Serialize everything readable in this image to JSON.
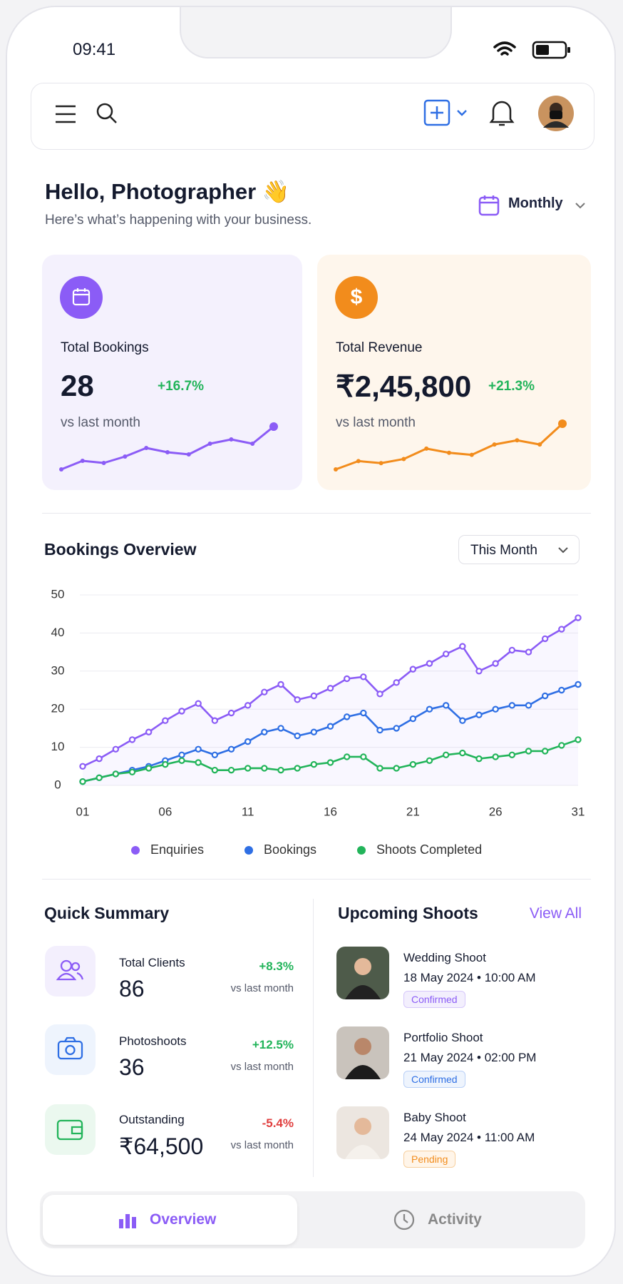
{
  "status": {
    "time": "09:41"
  },
  "greeting": {
    "title": "Hello, Photographer 👋",
    "subtitle": "Here’s what’s happening with your business.",
    "period": "Monthly"
  },
  "stats": [
    {
      "label": "Total Bookings",
      "value": "28",
      "change": "+16.7%",
      "note": "vs last month",
      "color": "#8b5cf6",
      "trend": [
        1,
        3,
        2.5,
        4,
        6,
        5,
        4.5,
        7,
        8,
        7,
        11
      ]
    },
    {
      "label": "Total Revenue",
      "value": "₹2,45,800",
      "change": "+21.3%",
      "note": "vs last month",
      "color": "#f28c1c",
      "trend": [
        1,
        3,
        2.5,
        3.5,
        6,
        5,
        4.5,
        7,
        8,
        7,
        12
      ]
    }
  ],
  "overview_filter": "This Month",
  "chart_data": {
    "type": "line",
    "title": "Bookings Overview",
    "x": [
      1,
      2,
      3,
      4,
      5,
      6,
      7,
      8,
      9,
      10,
      11,
      12,
      13,
      14,
      15,
      16,
      17,
      18,
      19,
      20,
      21,
      22,
      23,
      24,
      25,
      26,
      27,
      28,
      29,
      30,
      31
    ],
    "xlim": [
      1,
      31
    ],
    "xticks": [
      {
        "value": 1,
        "label": "01"
      },
      {
        "value": 6,
        "label": "06"
      },
      11,
      16,
      21,
      26,
      31
    ],
    "ylim": [
      0,
      50
    ],
    "yticks": [
      0,
      10,
      20,
      30,
      40,
      50
    ],
    "grid": true,
    "series": [
      {
        "name": "Enquiries",
        "color": "#8b5cf6",
        "values": [
          5,
          7,
          9.5,
          12,
          14,
          17,
          19.5,
          21.5,
          17,
          19,
          21,
          24.5,
          26.5,
          22.5,
          23.5,
          25.5,
          28,
          28.5,
          24,
          27,
          30.5,
          32,
          34.5,
          36.5,
          30,
          32,
          35.5,
          35,
          38.5,
          41,
          44
        ]
      },
      {
        "name": "Bookings",
        "color": "#2f6fe4",
        "values": [
          1,
          2,
          3,
          4,
          5,
          6.5,
          8,
          9.5,
          8,
          9.5,
          11.5,
          14,
          15,
          13,
          14,
          15.5,
          18,
          19,
          14.5,
          15,
          17.5,
          20,
          21,
          17,
          18.5,
          20,
          21,
          21,
          23.5,
          25,
          26.5
        ]
      },
      {
        "name": "Shoots Completed",
        "color": "#22b45a",
        "values": [
          1,
          2,
          3,
          3.5,
          4.5,
          5.5,
          6.5,
          6,
          4,
          4,
          4.5,
          4.5,
          4,
          4.5,
          5.5,
          6,
          7.5,
          7.5,
          4.5,
          4.5,
          5.5,
          6.5,
          8,
          8.5,
          7,
          7.5,
          8,
          9,
          9,
          10.5,
          12
        ]
      }
    ]
  },
  "summary": {
    "title": "Quick Summary",
    "items": [
      {
        "label": "Total Clients",
        "value": "86",
        "change": "+8.3%",
        "note": "vs last month"
      },
      {
        "label": "Photoshoots",
        "value": "36",
        "change": "+12.5%",
        "note": "vs last month"
      },
      {
        "label": "Outstanding",
        "value": "₹64,500",
        "change": "-5.4%",
        "note": "vs last month"
      }
    ]
  },
  "upcoming": {
    "title": "Upcoming Shoots",
    "link": "View All",
    "items": [
      {
        "title": "Wedding Shoot",
        "date": "18 May 2024 • 10:00 AM",
        "status": "Confirmed"
      },
      {
        "title": "Portfolio Shoot",
        "date": "21 May 2024 • 02:00 PM",
        "status": "Confirmed"
      },
      {
        "title": "Baby Shoot",
        "date": "24 May 2024 • 11:00 AM",
        "status": "Pending"
      }
    ]
  },
  "tabs": [
    "Overview",
    "Activity"
  ]
}
